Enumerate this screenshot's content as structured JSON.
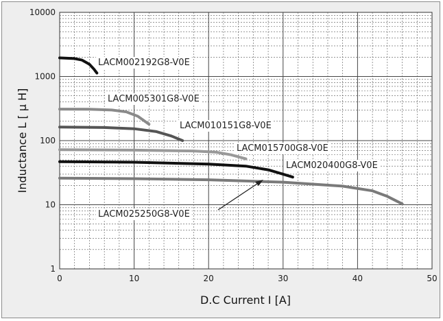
{
  "chart_data": {
    "type": "line",
    "xlabel": "D.C Current I [A]",
    "ylabel": "Inductance L  [ μ H]",
    "xlim": [
      0,
      50
    ],
    "ylim": [
      1,
      10000
    ],
    "yscale": "log",
    "grid": true,
    "x_ticks": [
      "0",
      "10",
      "20",
      "30",
      "40",
      "50"
    ],
    "y_ticks": [
      "1",
      "10",
      "100",
      "1000",
      "10000"
    ],
    "series": [
      {
        "name": "LACM002192G8-V0E",
        "color": "#111111",
        "width": 4,
        "points": [
          [
            0,
            1950
          ],
          [
            2,
            1900
          ],
          [
            3,
            1800
          ],
          [
            4,
            1550
          ],
          [
            4.6,
            1300
          ],
          [
            5,
            1130
          ]
        ]
      },
      {
        "name": "LACM005301G8-V0E",
        "color": "#8a8a8a",
        "width": 4,
        "points": [
          [
            0,
            310
          ],
          [
            4,
            308
          ],
          [
            7,
            300
          ],
          [
            9,
            280
          ],
          [
            10.5,
            240
          ],
          [
            12,
            180
          ]
        ]
      },
      {
        "name": "LACM010151G8-V0E",
        "color": "#555555",
        "width": 4,
        "points": [
          [
            0,
            163
          ],
          [
            6,
            160
          ],
          [
            10,
            153
          ],
          [
            13,
            138
          ],
          [
            15,
            118
          ],
          [
            16.5,
            100
          ]
        ]
      },
      {
        "name": "LACM015700G8-V0E",
        "color": "#999999",
        "width": 4,
        "points": [
          [
            0,
            72
          ],
          [
            10,
            71
          ],
          [
            18,
            69
          ],
          [
            21,
            66
          ],
          [
            23,
            60
          ],
          [
            25,
            52
          ]
        ]
      },
      {
        "name": "LACM020400G8-V0E",
        "color": "#111111",
        "width": 4,
        "points": [
          [
            0,
            47
          ],
          [
            10,
            46
          ],
          [
            20,
            43
          ],
          [
            25,
            40
          ],
          [
            28,
            35
          ],
          [
            30,
            30
          ],
          [
            31.3,
            27
          ]
        ]
      },
      {
        "name": "LACM025250G8-V0E",
        "color": "#7a7a7a",
        "width": 4,
        "points": [
          [
            0,
            26
          ],
          [
            10,
            25.5
          ],
          [
            20,
            24.5
          ],
          [
            30,
            22.5
          ],
          [
            38,
            19.5
          ],
          [
            42,
            16.5
          ],
          [
            44,
            13.5
          ],
          [
            46,
            10.3
          ]
        ]
      }
    ]
  }
}
